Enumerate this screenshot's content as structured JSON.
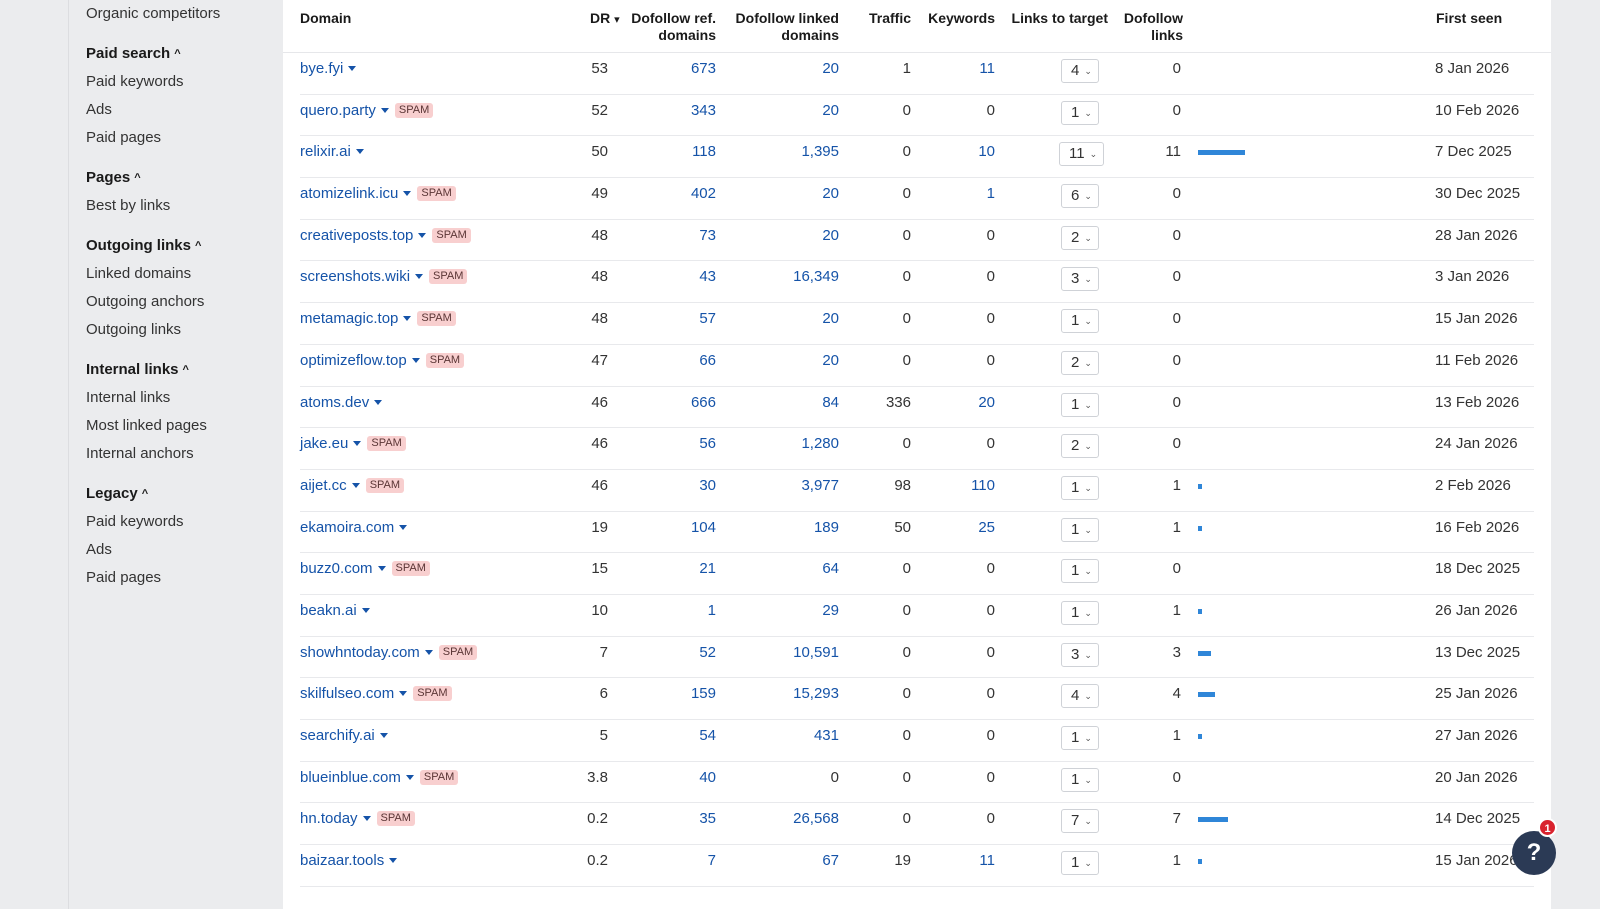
{
  "sidebar": {
    "top_item": "Organic competitors",
    "sections": [
      {
        "title": "Paid search",
        "items": [
          "Paid keywords",
          "Ads",
          "Paid pages"
        ]
      },
      {
        "title": "Pages",
        "items": [
          "Best by links"
        ]
      },
      {
        "title": "Outgoing links",
        "items": [
          "Linked domains",
          "Outgoing anchors",
          "Outgoing links"
        ]
      },
      {
        "title": "Internal links",
        "items": [
          "Internal links",
          "Most linked pages",
          "Internal anchors"
        ]
      },
      {
        "title": "Legacy",
        "items": [
          "Paid keywords",
          "Ads",
          "Paid pages"
        ]
      }
    ],
    "caret": "^"
  },
  "table": {
    "headers": {
      "domain": "Domain",
      "dr": "DR",
      "dr_sort": "▾",
      "dofollow_ref": "Dofollow ref. domains",
      "dofollow_ref_l1": "Dofollow ref.",
      "dofollow_ref_l2": "domains",
      "dofollow_linked_l1": "Dofollow linked",
      "dofollow_linked_l2": "domains",
      "traffic": "Traffic",
      "keywords": "Keywords",
      "links_to_target": "Links to target",
      "dofollow_links_l1": "Dofollow",
      "dofollow_links_l2": "links",
      "first_seen": "First seen"
    },
    "spam_label": "SPAM",
    "rows": [
      {
        "domain": "bye.fyi",
        "spam": false,
        "dr": "53",
        "ref": "673",
        "linked": "20",
        "traffic": "1",
        "keywords": "11",
        "ltt": "4",
        "dfl": "0",
        "first_seen": "8 Jan 2026"
      },
      {
        "domain": "quero.party",
        "spam": true,
        "dr": "52",
        "ref": "343",
        "linked": "20",
        "traffic": "0",
        "keywords": "0",
        "ltt": "1",
        "dfl": "0",
        "first_seen": "10 Feb 2026"
      },
      {
        "domain": "relixir.ai",
        "spam": false,
        "dr": "50",
        "ref": "118",
        "linked": "1,395",
        "traffic": "0",
        "keywords": "10",
        "ltt": "11",
        "dfl": "11",
        "first_seen": "7 Dec 2025"
      },
      {
        "domain": "atomizelink.icu",
        "spam": true,
        "dr": "49",
        "ref": "402",
        "linked": "20",
        "traffic": "0",
        "keywords": "1",
        "ltt": "6",
        "dfl": "0",
        "first_seen": "30 Dec 2025"
      },
      {
        "domain": "creativeposts.top",
        "spam": true,
        "dr": "48",
        "ref": "73",
        "linked": "20",
        "traffic": "0",
        "keywords": "0",
        "ltt": "2",
        "dfl": "0",
        "first_seen": "28 Jan 2026"
      },
      {
        "domain": "screenshots.wiki",
        "spam": true,
        "dr": "48",
        "ref": "43",
        "linked": "16,349",
        "traffic": "0",
        "keywords": "0",
        "ltt": "3",
        "dfl": "0",
        "first_seen": "3 Jan 2026"
      },
      {
        "domain": "metamagic.top",
        "spam": true,
        "dr": "48",
        "ref": "57",
        "linked": "20",
        "traffic": "0",
        "keywords": "0",
        "ltt": "1",
        "dfl": "0",
        "first_seen": "15 Jan 2026"
      },
      {
        "domain": "optimizeflow.top",
        "spam": true,
        "dr": "47",
        "ref": "66",
        "linked": "20",
        "traffic": "0",
        "keywords": "0",
        "ltt": "2",
        "dfl": "0",
        "first_seen": "11 Feb 2026"
      },
      {
        "domain": "atoms.dev",
        "spam": false,
        "dr": "46",
        "ref": "666",
        "linked": "84",
        "traffic": "336",
        "keywords": "20",
        "ltt": "1",
        "dfl": "0",
        "first_seen": "13 Feb 2026"
      },
      {
        "domain": "jake.eu",
        "spam": true,
        "dr": "46",
        "ref": "56",
        "linked": "1,280",
        "traffic": "0",
        "keywords": "0",
        "ltt": "2",
        "dfl": "0",
        "first_seen": "24 Jan 2026"
      },
      {
        "domain": "aijet.cc",
        "spam": true,
        "dr": "46",
        "ref": "30",
        "linked": "3,977",
        "traffic": "98",
        "keywords": "110",
        "ltt": "1",
        "dfl": "1",
        "first_seen": "2 Feb 2026"
      },
      {
        "domain": "ekamoira.com",
        "spam": false,
        "dr": "19",
        "ref": "104",
        "linked": "189",
        "traffic": "50",
        "keywords": "25",
        "ltt": "1",
        "dfl": "1",
        "first_seen": "16 Feb 2026"
      },
      {
        "domain": "buzz0.com",
        "spam": true,
        "dr": "15",
        "ref": "21",
        "linked": "64",
        "traffic": "0",
        "keywords": "0",
        "ltt": "1",
        "dfl": "0",
        "first_seen": "18 Dec 2025"
      },
      {
        "domain": "beakn.ai",
        "spam": false,
        "dr": "10",
        "ref": "1",
        "linked": "29",
        "traffic": "0",
        "keywords": "0",
        "ltt": "1",
        "dfl": "1",
        "first_seen": "26 Jan 2026"
      },
      {
        "domain": "showhntoday.com",
        "spam": true,
        "dr": "7",
        "ref": "52",
        "linked": "10,591",
        "traffic": "0",
        "keywords": "0",
        "ltt": "3",
        "dfl": "3",
        "first_seen": "13 Dec 2025"
      },
      {
        "domain": "skilfulseo.com",
        "spam": true,
        "dr": "6",
        "ref": "159",
        "linked": "15,293",
        "traffic": "0",
        "keywords": "0",
        "ltt": "4",
        "dfl": "4",
        "first_seen": "25 Jan 2026"
      },
      {
        "domain": "searchify.ai",
        "spam": false,
        "dr": "5",
        "ref": "54",
        "linked": "431",
        "traffic": "0",
        "keywords": "0",
        "ltt": "1",
        "dfl": "1",
        "first_seen": "27 Jan 2026"
      },
      {
        "domain": "blueinblue.com",
        "spam": true,
        "dr": "3.8",
        "ref": "40",
        "linked": "0",
        "traffic": "0",
        "keywords": "0",
        "ltt": "1",
        "dfl": "0",
        "first_seen": "20 Jan 2026"
      },
      {
        "domain": "hn.today",
        "spam": true,
        "dr": "0.2",
        "ref": "35",
        "linked": "26,568",
        "traffic": "0",
        "keywords": "0",
        "ltt": "7",
        "dfl": "7",
        "first_seen": "14 Dec 2025"
      },
      {
        "domain": "baizaar.tools",
        "spam": false,
        "dr": "0.2",
        "ref": "7",
        "linked": "67",
        "traffic": "19",
        "keywords": "11",
        "ltt": "1",
        "dfl": "1",
        "first_seen": "15 Jan 2026"
      }
    ]
  },
  "help": {
    "label": "?",
    "notification_count": "1"
  },
  "colors": {
    "link": "#1553a8",
    "spam_bg": "#f8cfcf",
    "bar": "#2f86d8",
    "help_bg": "#2b3a55",
    "badge": "#d9232e"
  }
}
